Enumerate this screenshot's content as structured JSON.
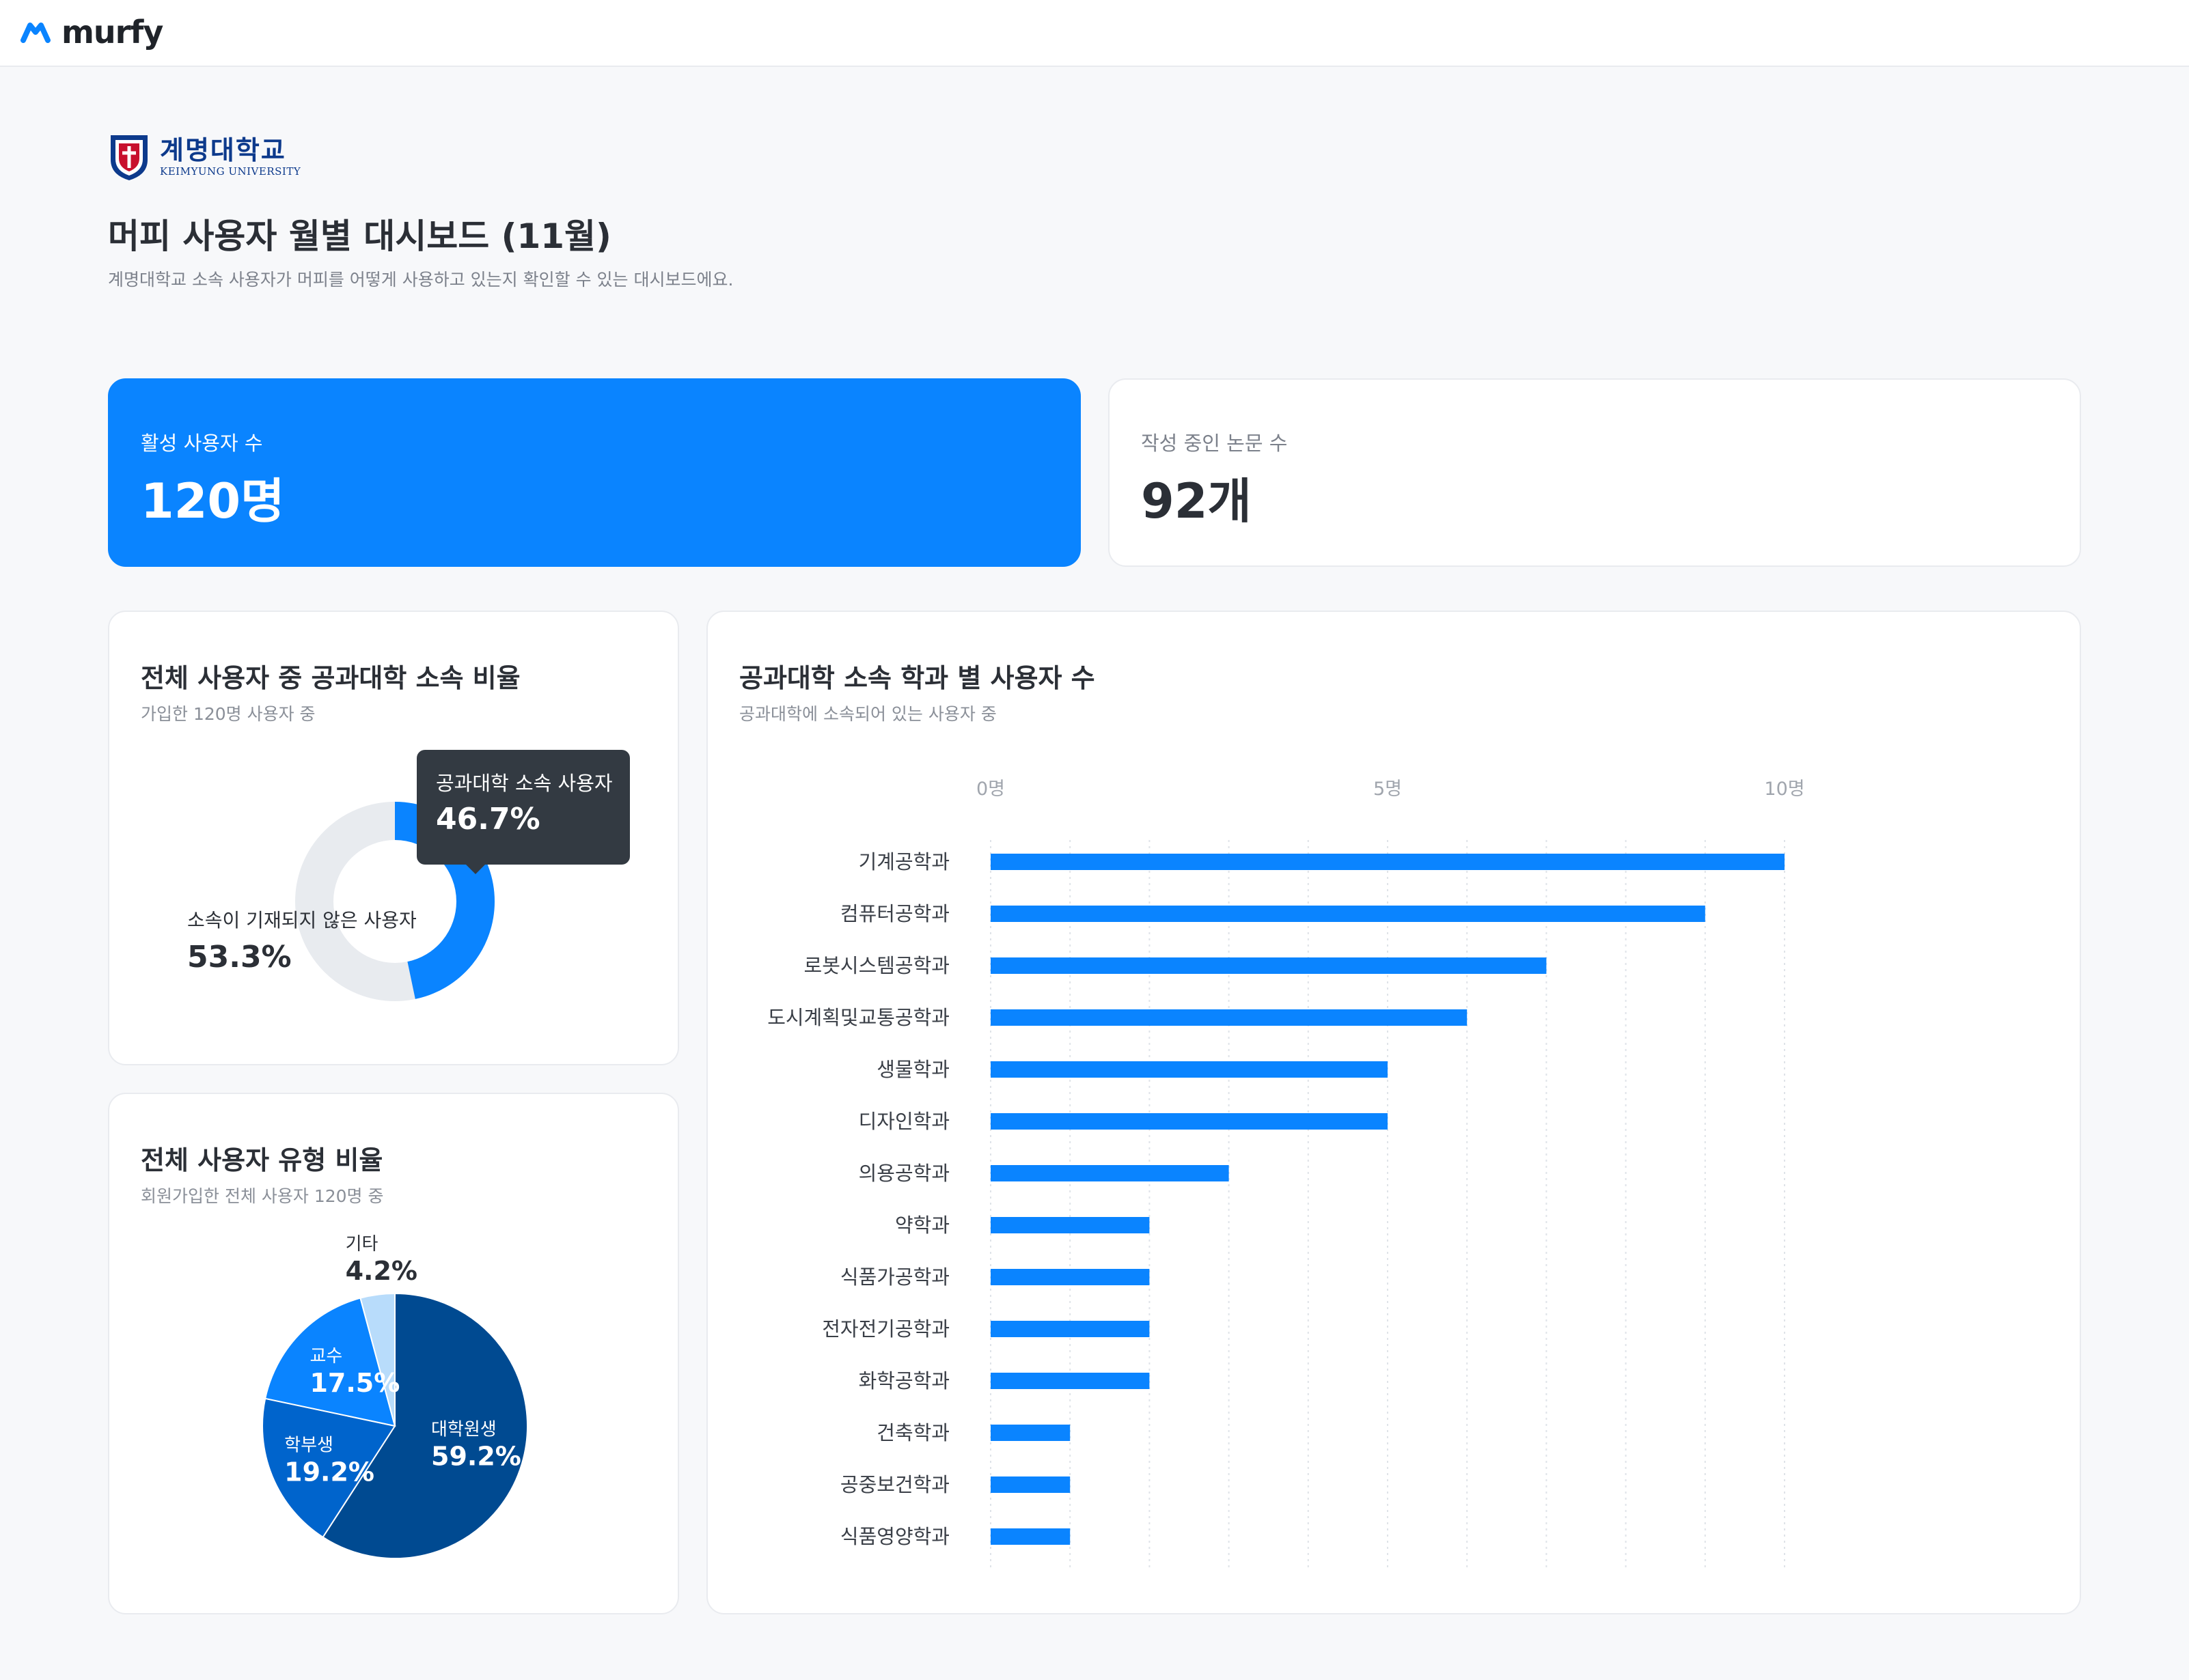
{
  "header": {
    "brand": "murfy"
  },
  "university": {
    "name_kr": "계명대학교",
    "name_en": "KEIMYUNG UNIVERSITY"
  },
  "page": {
    "title": "머피 사용자 월별 대시보드 (11월)",
    "description": "계명대학교 소속 사용자가 머피를 어떻게 사용하고 있는지 확인할 수 있는 대시보드에요."
  },
  "kpis": {
    "active_users": {
      "label": "활성 사용자 수",
      "value": "120명"
    },
    "papers": {
      "label": "작성 중인 논문 수",
      "value": "92개"
    }
  },
  "colors": {
    "primary": "#0a84ff",
    "track": "#e8ebef",
    "pie_grad": "#004a91",
    "pie_undergrad": "#0064cc",
    "pie_prof": "#0a84ff",
    "pie_other": "#b8dcfb"
  },
  "chart_data": [
    {
      "type": "pie",
      "variant": "donut",
      "title": "전체 사용자 중 공과대학 소속 비율",
      "subtitle": "가입한 120명 사용자 중",
      "slices": [
        {
          "label": "공과대학 소속 사용자",
          "value": 46.7,
          "display": "46.7%"
        },
        {
          "label": "소속이 기재되지 않은 사용자",
          "value": 53.3,
          "display": "53.3%"
        }
      ]
    },
    {
      "type": "pie",
      "title": "전체 사용자 유형 비율",
      "subtitle": "회원가입한 전체 사용자 120명 중",
      "slices": [
        {
          "label": "대학원생",
          "value": 59.2,
          "display": "59.2%"
        },
        {
          "label": "학부생",
          "value": 19.2,
          "display": "19.2%"
        },
        {
          "label": "교수",
          "value": 17.5,
          "display": "17.5%"
        },
        {
          "label": "기타",
          "value": 4.2,
          "display": "4.2%"
        }
      ]
    },
    {
      "type": "bar",
      "orientation": "horizontal",
      "title": "공과대학 소속 학과 별 사용자 수",
      "subtitle": "공과대학에 소속되어 있는 사용자 중",
      "xlim": [
        0,
        10
      ],
      "ticks": [
        {
          "value": 0,
          "label": "0명"
        },
        {
          "value": 5,
          "label": "5명"
        },
        {
          "value": 10,
          "label": "10명"
        }
      ],
      "grid": true,
      "categories": [
        "기계공학과",
        "컴퓨터공학과",
        "로봇시스템공학과",
        "도시계획및교통공학과",
        "생물학과",
        "디자인학과",
        "의용공학과",
        "약학과",
        "식품가공학과",
        "전자전기공학과",
        "화학공학과",
        "건축학과",
        "공중보건학과",
        "식품영양학과"
      ],
      "values": [
        10,
        9,
        7,
        6,
        5,
        5,
        3,
        2,
        2,
        2,
        2,
        1,
        1,
        1
      ]
    }
  ]
}
